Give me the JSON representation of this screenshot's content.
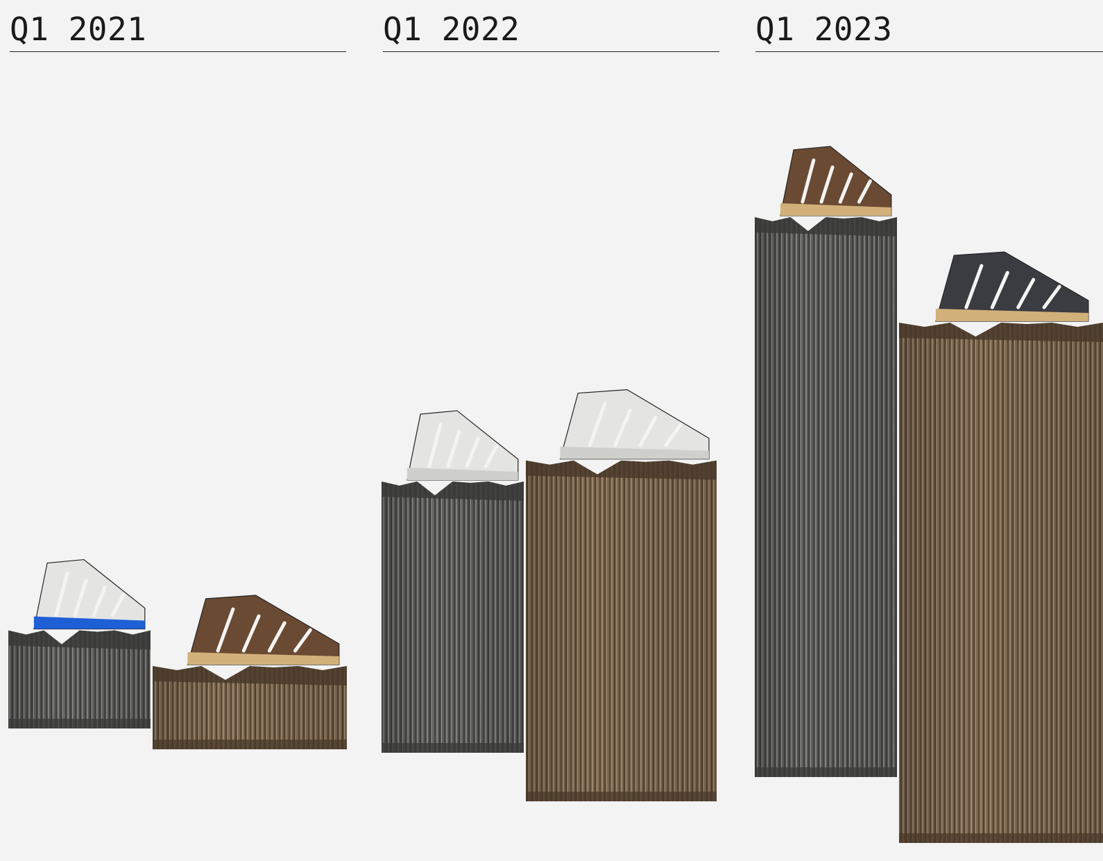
{
  "chart_data": {
    "type": "bar",
    "categories": [
      "Q1 2021",
      "Q1 2022",
      "Q1 2023"
    ],
    "series": [
      {
        "color": "#5a5a58",
        "values": [
          17,
          47,
          97
        ]
      },
      {
        "color": "#7a6650",
        "values": [
          11,
          57,
          87
        ]
      }
    ],
    "ylim": [
      0,
      100
    ],
    "grid": false,
    "legend": "none"
  },
  "colors": {
    "background": "#f3f3f3",
    "text": "#1a1a1a",
    "gray_pillar": "#5a5a58",
    "brown_pillar": "#7a6650",
    "rock_top": "#3a3a38"
  },
  "icons": {
    "bar_top": "sneaker-icon"
  }
}
